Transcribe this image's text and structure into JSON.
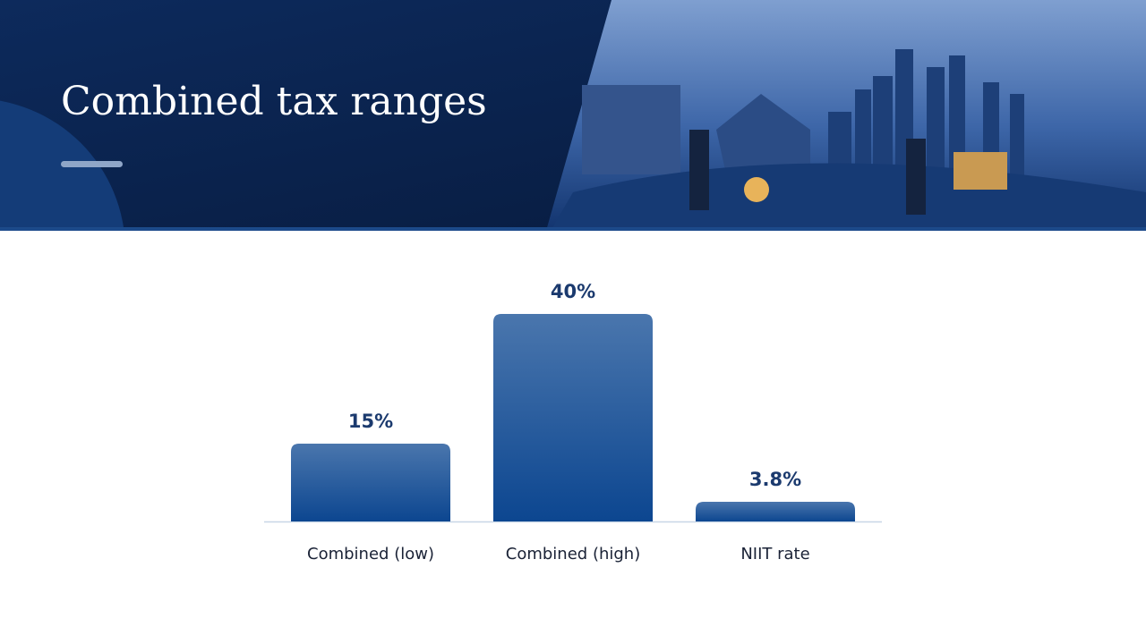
{
  "chart_data": {
    "type": "bar",
    "title": "Combined tax ranges",
    "categories": [
      "Combined (low)",
      "Combined (high)",
      "NIIT rate"
    ],
    "values": [
      15,
      40,
      3.8
    ],
    "value_labels": [
      "15%",
      "40%",
      "3.8%"
    ],
    "color": "#0c4690"
  }
}
